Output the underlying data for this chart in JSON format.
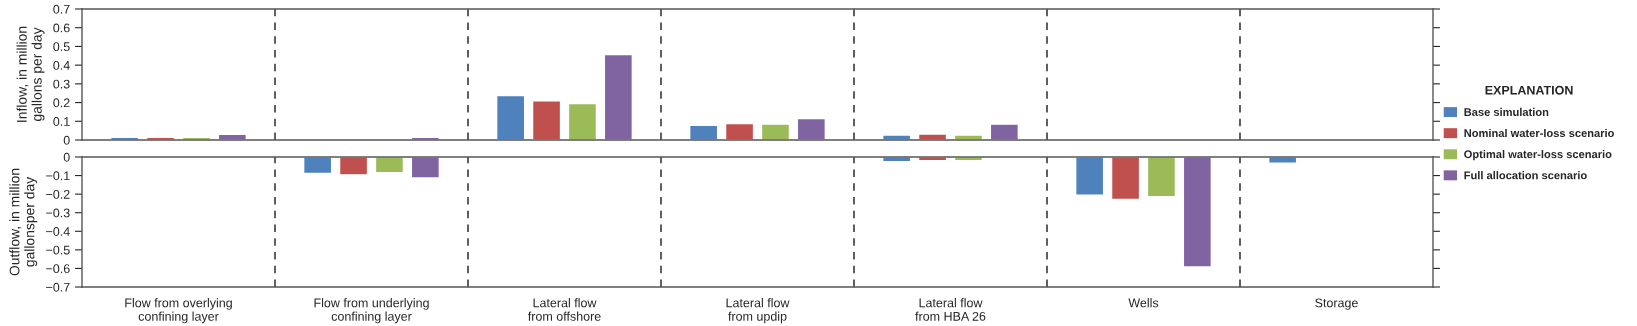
{
  "chart_data": [
    {
      "type": "bar",
      "ylabel": "Inflow, in million\ngallons per day",
      "legend_title": "EXPLANATION",
      "legend": "right",
      "grid": "x",
      "categories": [
        null,
        null,
        null,
        null,
        null,
        null,
        null
      ],
      "ylim": [
        0,
        0.7
      ],
      "yticks": [
        0,
        0.1,
        0.2,
        0.3,
        0.4,
        0.5,
        0.6,
        0.7
      ],
      "series": [
        {
          "name": "Base simulation",
          "color": "#4f81bd",
          "values": [
            0.015,
            null,
            0.237,
            0.078,
            0.027,
            null,
            null
          ]
        },
        {
          "name": "Nominal water-loss scenario",
          "color": "#c0504d",
          "values": [
            0.015,
            null,
            0.21,
            0.088,
            0.032,
            null,
            0.003
          ]
        },
        {
          "name": "Optimal water-loss scenario",
          "color": "#9bbb59",
          "values": [
            0.015,
            null,
            0.195,
            0.085,
            0.027,
            null,
            null
          ]
        },
        {
          "name": "Full allocation scenario",
          "color": "#8064a2",
          "values": [
            0.03,
            0.015,
            0.456,
            0.115,
            0.085,
            null,
            0.003
          ]
        }
      ]
    },
    {
      "type": "bar",
      "ylabel": "Outflow, in million\ngallonsper day",
      "grid": "x",
      "categories": [
        "Flow from overlying\nconfining layer",
        "Flow from underlying\nconfining layer",
        "Lateral flow\nfrom offshore",
        "Lateral flow\nfrom updip",
        "Lateral flow\nfrom HBA 26",
        "Wells",
        "Storage"
      ],
      "ylim": [
        -0.7,
        0
      ],
      "yticks": [
        {
          "value": -0.7,
          "label": "−0.7"
        },
        {
          "value": -0.6,
          "label": "−0.6"
        },
        {
          "value": -0.5,
          "label": "−0.5"
        },
        {
          "value": -0.4,
          "label": "−0.4"
        },
        {
          "value": -0.3,
          "label": "−0.3"
        },
        {
          "value": -0.2,
          "label": "−0.2"
        },
        {
          "value": -0.1,
          "label": "−0.1"
        },
        0
      ],
      "series": [
        {
          "color": "#4f81bd",
          "values": [
            null,
            -0.088,
            null,
            null,
            -0.025,
            -0.206,
            -0.033
          ]
        },
        {
          "color": "#c0504d",
          "values": [
            null,
            -0.096,
            null,
            null,
            -0.02,
            -0.228,
            null
          ]
        },
        {
          "color": "#9bbb59",
          "values": [
            null,
            -0.084,
            null,
            null,
            -0.02,
            -0.214,
            null
          ]
        },
        {
          "color": "#8064a2",
          "values": [
            null,
            -0.113,
            null,
            null,
            -0.005,
            -0.592,
            null
          ]
        }
      ]
    }
  ]
}
